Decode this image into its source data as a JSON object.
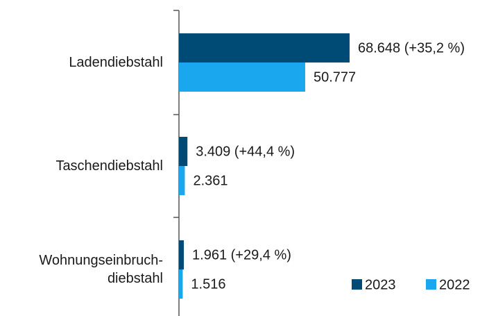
{
  "chart_data": {
    "type": "bar",
    "orientation": "horizontal",
    "categories": [
      "Ladendiebstahl",
      "Taschendiebstahl",
      "Wohnungseinbruch-\ndiebstahl"
    ],
    "series": [
      {
        "name": "2023",
        "color": "#004b76",
        "values": [
          68648,
          3409,
          1961
        ],
        "value_labels": [
          "68.648 (+35,2 %)",
          "3.409 (+44,4 %)",
          "1.961 (+29,4 %)"
        ]
      },
      {
        "name": "2022",
        "color": "#1aa7ee",
        "values": [
          50777,
          2361,
          1516
        ],
        "value_labels": [
          "50.777",
          "2.361",
          "1.516"
        ]
      }
    ],
    "legend": "bottom-right"
  }
}
